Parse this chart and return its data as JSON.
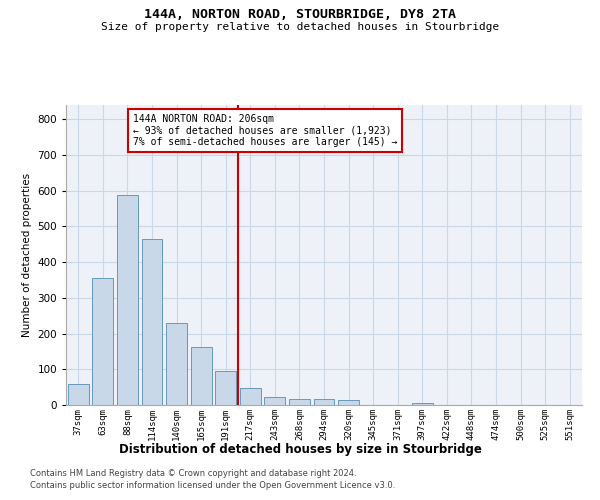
{
  "title1": "144A, NORTON ROAD, STOURBRIDGE, DY8 2TA",
  "title2": "Size of property relative to detached houses in Stourbridge",
  "xlabel": "Distribution of detached houses by size in Stourbridge",
  "ylabel": "Number of detached properties",
  "bin_labels": [
    "37sqm",
    "63sqm",
    "88sqm",
    "114sqm",
    "140sqm",
    "165sqm",
    "191sqm",
    "217sqm",
    "243sqm",
    "268sqm",
    "294sqm",
    "320sqm",
    "345sqm",
    "371sqm",
    "397sqm",
    "422sqm",
    "448sqm",
    "474sqm",
    "500sqm",
    "525sqm",
    "551sqm"
  ],
  "bar_values": [
    60,
    357,
    588,
    465,
    230,
    162,
    95,
    48,
    22,
    18,
    18,
    13,
    0,
    0,
    5,
    0,
    0,
    0,
    0,
    0,
    0
  ],
  "bar_color": "#c8d8e8",
  "bar_edge_color": "#6699bb",
  "grid_color": "#c8d8e8",
  "bg_color": "#eef2f8",
  "vline_x": 6.5,
  "vline_color": "#cc0000",
  "annotation_text": "144A NORTON ROAD: 206sqm\n← 93% of detached houses are smaller (1,923)\n7% of semi-detached houses are larger (145) →",
  "annotation_box_color": "#ffffff",
  "annotation_box_edge": "#cc0000",
  "ylim": [
    0,
    840
  ],
  "yticks": [
    0,
    100,
    200,
    300,
    400,
    500,
    600,
    700,
    800
  ],
  "footnote1": "Contains HM Land Registry data © Crown copyright and database right 2024.",
  "footnote2": "Contains public sector information licensed under the Open Government Licence v3.0."
}
